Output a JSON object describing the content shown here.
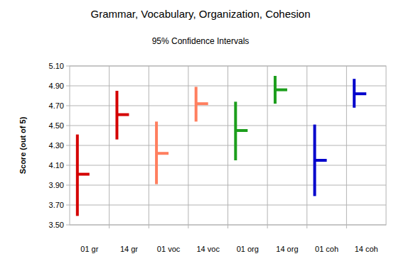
{
  "chart_data": {
    "type": "error_bar",
    "title": "Grammar, Vocabulary, Organization, Cohesion",
    "subtitle": "95% Confidence Intervals",
    "y_label": "Score (out of 5)",
    "categories": [
      "01 gr",
      "14 gr",
      "01 voc",
      "14 voc",
      "01 org",
      "14 org",
      "01 coh",
      "14 coh"
    ],
    "series": [
      {
        "values": [
          4.01,
          4.61,
          4.22,
          4.72,
          4.45,
          4.86,
          4.15,
          4.82
        ],
        "low": [
          3.59,
          4.36,
          3.91,
          4.54,
          4.15,
          4.72,
          3.79,
          4.68
        ],
        "high": [
          4.41,
          4.85,
          4.54,
          4.89,
          4.74,
          5.0,
          4.51,
          4.97
        ],
        "colors": [
          "#d40000",
          "#d40000",
          "#ff7f5f",
          "#ff7f5f",
          "#1c9e1c",
          "#1c9e1c",
          "#0000cc",
          "#0000cc"
        ]
      }
    ],
    "ylim": [
      3.5,
      5.1
    ],
    "yticks": [
      {
        "value": 3.5,
        "label": "3.50"
      },
      {
        "value": 3.7,
        "label": "3.70"
      },
      {
        "value": 3.9,
        "label": "3.90"
      },
      {
        "value": 4.1,
        "label": "4.10"
      },
      {
        "value": 4.3,
        "label": "4.30"
      },
      {
        "value": 4.5,
        "label": "4.50"
      },
      {
        "value": 4.7,
        "label": "4.70"
      },
      {
        "value": 4.9,
        "label": "4.90"
      },
      {
        "value": 5.1,
        "label": "5.10"
      }
    ],
    "grid": true
  }
}
